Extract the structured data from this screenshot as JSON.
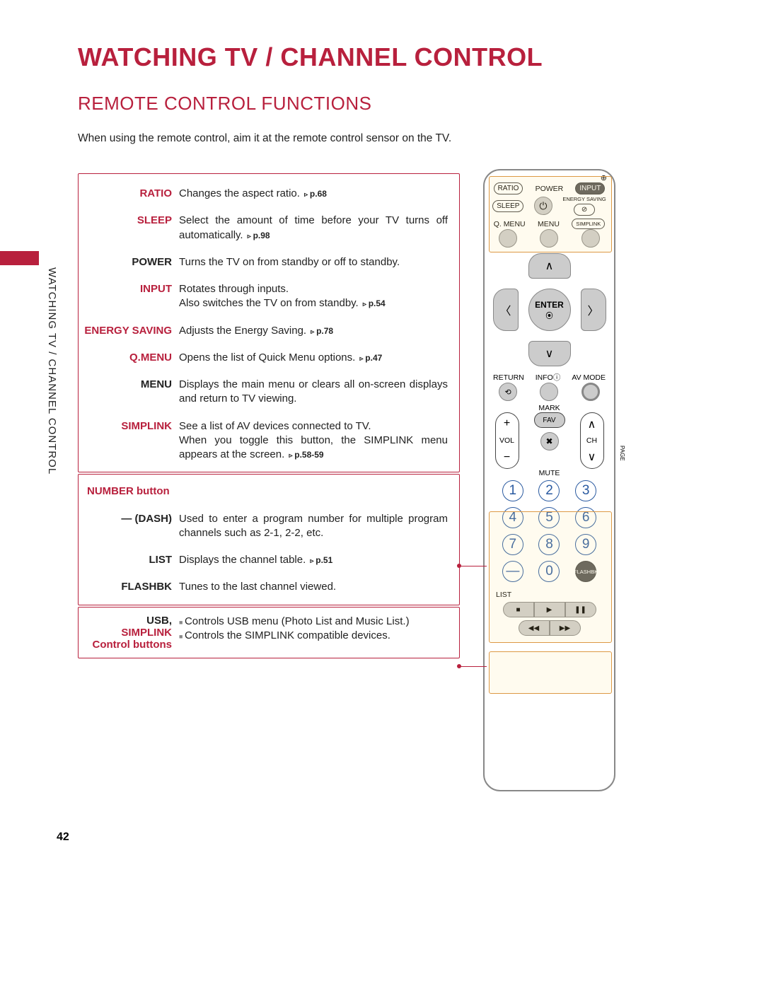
{
  "page": {
    "title": "WATCHING TV / CHANNEL CONTROL",
    "subtitle": "REMOTE CONTROL FUNCTIONS",
    "intro": "When using the remote control, aim it at the remote control sensor on the TV.",
    "sideLabel": "WATCHING TV / CHANNEL CONTROL",
    "pageNumber": "42"
  },
  "colors": {
    "accent": "#b8203d",
    "text": "#222",
    "remote_btn": "#cccccc",
    "remote_border": "#888888",
    "num_border": "#2a5aa0",
    "highlight": "#d94"
  },
  "functions": {
    "box1": [
      {
        "label": "RATIO",
        "red": true,
        "text": "Changes the aspect ratio.",
        "pref": "p.68"
      },
      {
        "label": "SLEEP",
        "red": true,
        "text": "Select the amount of time before your TV turns off automatically.",
        "pref": "p.98"
      },
      {
        "label": "POWER",
        "red": false,
        "text": "Turns the TV on from standby or off to standby."
      },
      {
        "label": "INPUT",
        "red": true,
        "text": "Rotates through inputs.",
        "text2": "Also switches the TV on from standby.",
        "pref": "p.54"
      },
      {
        "label": "ENERGY SAVING",
        "red": true,
        "text": "Adjusts the Energy Saving.",
        "pref": "p.78"
      },
      {
        "label": "Q.MENU",
        "red": true,
        "text": "Opens the list of Quick Menu options.",
        "pref": "p.47"
      },
      {
        "label": "MENU",
        "red": false,
        "text": "Displays the main menu or clears all on-screen displays and return to TV viewing."
      },
      {
        "label": "SIMPLINK",
        "red": true,
        "text": "See a list of AV devices connected to TV.",
        "text2": "When you toggle this button, the SIMPLINK menu appears at the screen.",
        "pref": "p.58-59"
      }
    ],
    "box2": [
      {
        "label": "NUMBER button",
        "red": true,
        "labelOnly": true
      },
      {
        "label": "— (DASH)",
        "red": false,
        "text": "Used to enter a program number for multiple program channels such as 2-1, 2-2, etc."
      },
      {
        "label": "LIST",
        "red": false,
        "text": "Displays the channel table.",
        "pref": "p.51"
      },
      {
        "label": "FLASHBK",
        "red": false,
        "text": "Tunes to the last channel viewed."
      }
    ],
    "box3": {
      "label1": "USB,",
      "label2": "SIMPLINK",
      "label3": "Control buttons",
      "b1": "Controls USB menu (Photo List and Music List.)",
      "b2": "Controls the SIMPLINK compatible devices."
    }
  },
  "remote": {
    "row1": {
      "ratio": "RATIO",
      "power": "POWER",
      "input": "INPUT",
      "energy": "ENERGY SAVING"
    },
    "row2": {
      "sleep": "SLEEP"
    },
    "row3": {
      "qmenu": "Q. MENU",
      "menu": "MENU",
      "simplink": "SIMPLINK"
    },
    "enter": "ENTER",
    "row4": {
      "return": "RETURN",
      "info": "INFOⓘ",
      "avmode": "AV MODE"
    },
    "mark": "MARK",
    "fav": "FAV",
    "vol": "VOL",
    "ch": "CH",
    "page": "PAGE",
    "mute": "MUTE",
    "numbers": [
      "1",
      "2",
      "3",
      "4",
      "5",
      "6",
      "7",
      "8",
      "9",
      "—",
      "0",
      "FLASHBK"
    ],
    "list": "LIST",
    "media": [
      "■",
      "▶",
      "❚❚",
      "◀◀",
      "▶▶"
    ]
  }
}
